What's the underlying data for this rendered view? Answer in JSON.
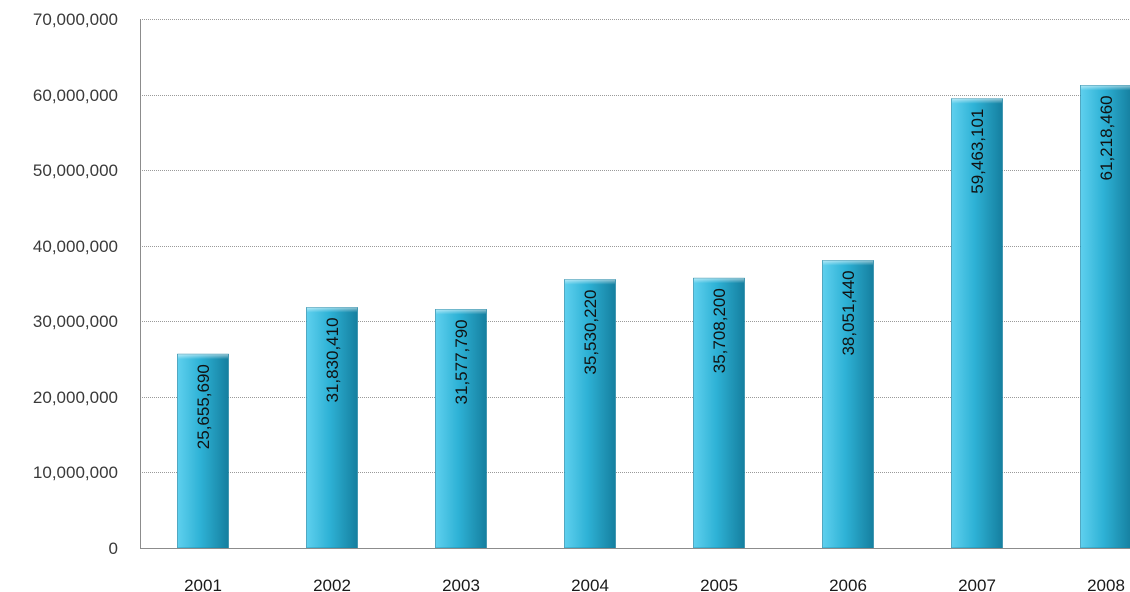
{
  "chart_data": {
    "type": "bar",
    "title": "",
    "xlabel": "",
    "ylabel": "",
    "categories": [
      "2001",
      "2002",
      "2003",
      "2004",
      "2005",
      "2006",
      "2007",
      "2008"
    ],
    "values": [
      25655690,
      31830410,
      31577790,
      35530220,
      35708200,
      38051440,
      59463101,
      61218460
    ],
    "data_labels": [
      "25,655,690",
      "31,830,410",
      "31,577,790",
      "35,530,220",
      "35,708,200",
      "38,051,440",
      "59,463,101",
      "61,218,460"
    ],
    "ylim": [
      0,
      70000000
    ],
    "yticks": [
      0,
      10000000,
      20000000,
      30000000,
      40000000,
      50000000,
      60000000,
      70000000
    ],
    "ytick_labels": [
      "0",
      "10,000,000",
      "20,000,000",
      "30,000,000",
      "40,000,000",
      "50,000,000",
      "60,000,000",
      "70,000,000"
    ],
    "grid": true,
    "legend": "none",
    "colors": {
      "bar_light": "#5fd0ee",
      "bar_mid": "#2eb2d6",
      "bar_dark": "#157f9f",
      "gridline": "#9a9a9a",
      "axis": "#8c8c8c"
    }
  }
}
